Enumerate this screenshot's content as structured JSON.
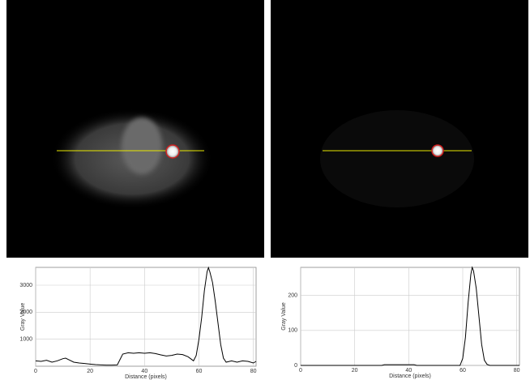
{
  "chart_data": [
    {
      "type": "line",
      "xlabel": "Distance (pixels)",
      "ylabel": "Gray Value",
      "x": [
        0,
        2,
        4,
        6,
        8,
        10,
        11,
        12,
        14,
        16,
        18,
        20,
        22,
        24,
        26,
        28,
        30,
        32,
        34,
        36,
        38,
        40,
        42,
        44,
        46,
        48,
        50,
        52,
        54,
        56,
        58,
        59,
        60,
        61,
        62,
        63,
        63.5,
        64,
        65,
        66,
        67,
        68,
        69,
        70,
        72,
        74,
        76,
        78,
        80,
        81
      ],
      "series": [
        {
          "color": "#000000",
          "values": [
            200,
            180,
            220,
            150,
            200,
            280,
            300,
            250,
            150,
            120,
            100,
            80,
            60,
            50,
            40,
            40,
            50,
            450,
            500,
            480,
            500,
            480,
            500,
            470,
            420,
            380,
            400,
            450,
            430,
            350,
            200,
            400,
            1000,
            1800,
            2800,
            3500,
            3650,
            3500,
            3100,
            2400,
            1600,
            800,
            300,
            150,
            200,
            150,
            200,
            180,
            120,
            180
          ]
        }
      ],
      "xlim": [
        0,
        81
      ],
      "ylim": [
        0,
        3660
      ],
      "xticks": [
        0,
        20,
        40,
        60,
        80
      ],
      "yticks": [
        1000,
        2000,
        3000
      ],
      "grid": true
    },
    {
      "type": "line",
      "xlabel": "Distance (pixels)",
      "ylabel": "Gray Value",
      "x": [
        0,
        10,
        20,
        30,
        31,
        42,
        43,
        58,
        59,
        60,
        61,
        62,
        63,
        63.5,
        64,
        65,
        66,
        67,
        68,
        69,
        70,
        81
      ],
      "series": [
        {
          "color": "#000000",
          "values": [
            0,
            0,
            0,
            0,
            2,
            2,
            0,
            0,
            0,
            20,
            80,
            180,
            260,
            280,
            270,
            220,
            140,
            60,
            15,
            3,
            0,
            0
          ]
        }
      ],
      "xlim": [
        0,
        81
      ],
      "ylim": [
        0,
        280
      ],
      "xticks": [
        0,
        20,
        40,
        60,
        80
      ],
      "yticks": [
        0,
        100,
        200
      ],
      "grid": true
    }
  ]
}
